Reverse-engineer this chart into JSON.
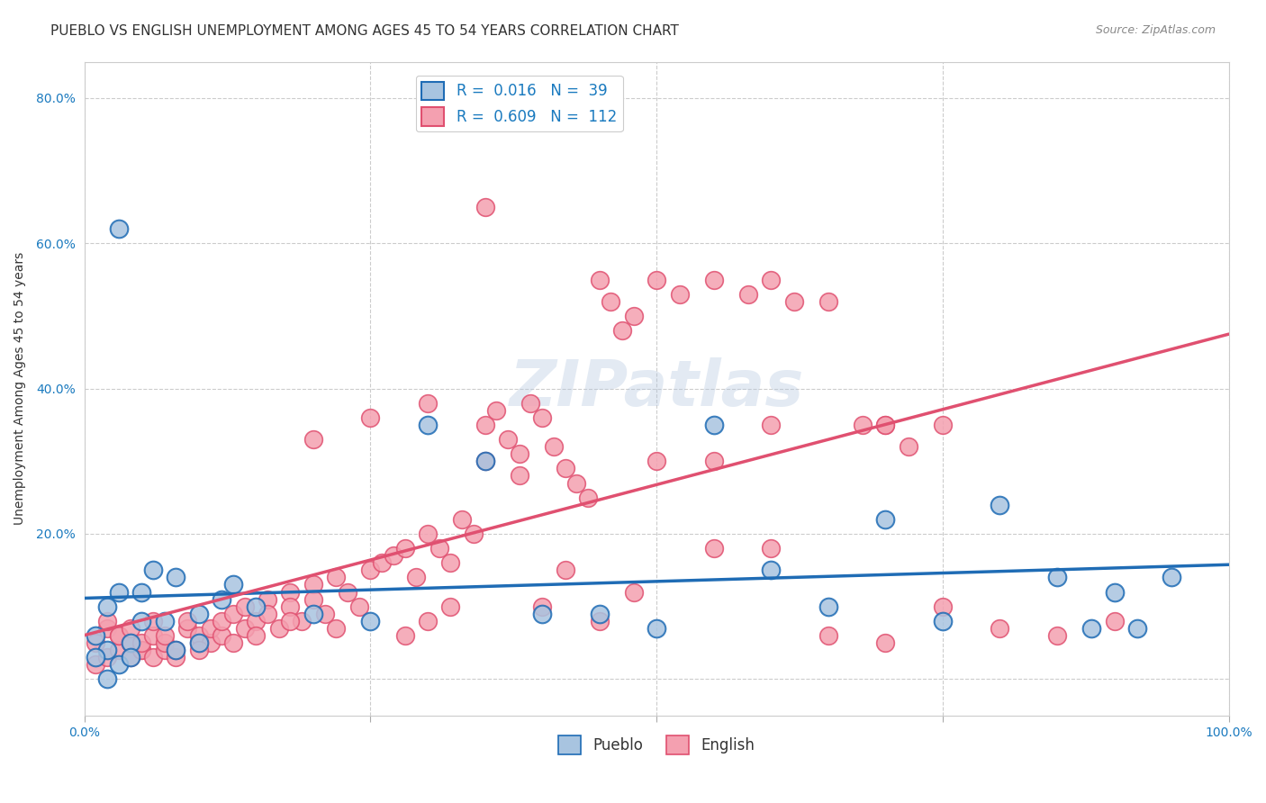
{
  "title": "PUEBLO VS ENGLISH UNEMPLOYMENT AMONG AGES 45 TO 54 YEARS CORRELATION CHART",
  "source": "Source: ZipAtlas.com",
  "xlabel": "",
  "ylabel": "Unemployment Among Ages 45 to 54 years",
  "xlim": [
    0.0,
    1.0
  ],
  "ylim": [
    -0.05,
    0.85
  ],
  "xticks": [
    0.0,
    0.25,
    0.5,
    0.75,
    1.0
  ],
  "xticklabels": [
    "0.0%",
    "",
    "",
    "",
    "100.0%"
  ],
  "ytick_positions": [
    0.0,
    0.2,
    0.4,
    0.6,
    0.8
  ],
  "yticklabels": [
    "",
    "20.0%",
    "40.0%",
    "60.0%",
    "80.0%"
  ],
  "pueblo_R": 0.016,
  "pueblo_N": 39,
  "english_R": 0.609,
  "english_N": 112,
  "pueblo_color": "#a8c4e0",
  "pueblo_line_color": "#1f6cb5",
  "english_color": "#f4a0b0",
  "english_line_color": "#e05070",
  "pueblo_scatter_x": [
    0.02,
    0.03,
    0.01,
    0.04,
    0.05,
    0.02,
    0.03,
    0.01,
    0.02,
    0.04,
    0.06,
    0.08,
    0.1,
    0.12,
    0.07,
    0.03,
    0.05,
    0.15,
    0.13,
    0.2,
    0.25,
    0.3,
    0.35,
    0.55,
    0.6,
    0.65,
    0.7,
    0.8,
    0.85,
    0.9,
    0.95,
    0.92,
    0.88,
    0.75,
    0.5,
    0.45,
    0.4,
    0.1,
    0.08
  ],
  "pueblo_scatter_y": [
    0.04,
    0.02,
    0.03,
    0.05,
    0.08,
    0.1,
    0.12,
    0.06,
    0.0,
    0.03,
    0.15,
    0.14,
    0.09,
    0.11,
    0.08,
    0.62,
    0.12,
    0.1,
    0.13,
    0.09,
    0.08,
    0.35,
    0.3,
    0.35,
    0.15,
    0.1,
    0.22,
    0.24,
    0.14,
    0.12,
    0.14,
    0.07,
    0.07,
    0.08,
    0.07,
    0.09,
    0.09,
    0.05,
    0.04
  ],
  "english_scatter_x": [
    0.01,
    0.02,
    0.01,
    0.03,
    0.02,
    0.03,
    0.04,
    0.02,
    0.04,
    0.05,
    0.03,
    0.04,
    0.05,
    0.06,
    0.04,
    0.05,
    0.06,
    0.07,
    0.06,
    0.07,
    0.08,
    0.07,
    0.08,
    0.09,
    0.1,
    0.09,
    0.1,
    0.11,
    0.1,
    0.11,
    0.12,
    0.12,
    0.13,
    0.13,
    0.14,
    0.14,
    0.15,
    0.15,
    0.16,
    0.16,
    0.17,
    0.18,
    0.18,
    0.19,
    0.2,
    0.2,
    0.21,
    0.22,
    0.23,
    0.24,
    0.25,
    0.26,
    0.27,
    0.28,
    0.29,
    0.3,
    0.31,
    0.32,
    0.33,
    0.34,
    0.35,
    0.36,
    0.37,
    0.38,
    0.39,
    0.4,
    0.41,
    0.42,
    0.43,
    0.44,
    0.45,
    0.46,
    0.47,
    0.48,
    0.5,
    0.52,
    0.55,
    0.58,
    0.6,
    0.62,
    0.65,
    0.68,
    0.7,
    0.72,
    0.75,
    0.3,
    0.25,
    0.2,
    0.18,
    0.35,
    0.4,
    0.45,
    0.32,
    0.28,
    0.22,
    0.38,
    0.55,
    0.6,
    0.65,
    0.7,
    0.8,
    0.85,
    0.9,
    0.5,
    0.55,
    0.6,
    0.7,
    0.75,
    0.42,
    0.48,
    0.35,
    0.3
  ],
  "english_scatter_y": [
    0.02,
    0.03,
    0.05,
    0.04,
    0.07,
    0.06,
    0.03,
    0.08,
    0.05,
    0.04,
    0.06,
    0.05,
    0.04,
    0.03,
    0.07,
    0.05,
    0.06,
    0.04,
    0.08,
    0.05,
    0.03,
    0.06,
    0.04,
    0.07,
    0.05,
    0.08,
    0.06,
    0.05,
    0.04,
    0.07,
    0.06,
    0.08,
    0.05,
    0.09,
    0.07,
    0.1,
    0.08,
    0.06,
    0.11,
    0.09,
    0.07,
    0.12,
    0.1,
    0.08,
    0.13,
    0.11,
    0.09,
    0.14,
    0.12,
    0.1,
    0.15,
    0.16,
    0.17,
    0.18,
    0.14,
    0.2,
    0.18,
    0.16,
    0.22,
    0.2,
    0.35,
    0.37,
    0.33,
    0.31,
    0.38,
    0.36,
    0.32,
    0.29,
    0.27,
    0.25,
    0.55,
    0.52,
    0.48,
    0.5,
    0.55,
    0.53,
    0.55,
    0.53,
    0.55,
    0.52,
    0.52,
    0.35,
    0.35,
    0.32,
    0.35,
    0.38,
    0.36,
    0.33,
    0.08,
    0.3,
    0.1,
    0.08,
    0.1,
    0.06,
    0.07,
    0.28,
    0.18,
    0.18,
    0.06,
    0.05,
    0.07,
    0.06,
    0.08,
    0.3,
    0.3,
    0.35,
    0.35,
    0.1,
    0.15,
    0.12,
    0.65,
    0.08
  ],
  "watermark": "ZIPatlas",
  "background_color": "#ffffff",
  "grid_color": "#cccccc",
  "title_fontsize": 11,
  "axis_label_fontsize": 10,
  "tick_fontsize": 10,
  "legend_fontsize": 12
}
